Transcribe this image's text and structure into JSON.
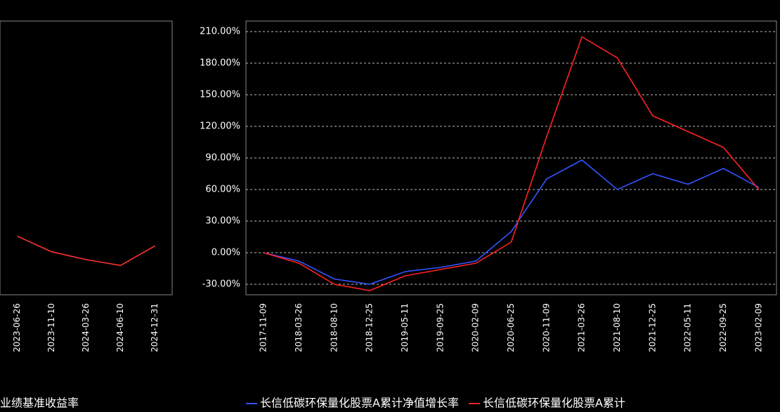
{
  "chart_data": [
    {
      "type": "line",
      "categories": [
        "2023-06-26",
        "2023-11-10",
        "2024-03-26",
        "2024-06-10",
        "2024-12-31"
      ],
      "series": [
        {
          "name": "业绩基准收益率",
          "color": "#ff3333",
          "values": [
            -10,
            -18,
            -22,
            -25,
            -15
          ]
        }
      ],
      "ylim": [
        -40,
        100
      ],
      "grid": true
    },
    {
      "type": "line",
      "categories": [
        "2017-11-09",
        "2018-03-26",
        "2018-08-10",
        "2018-12-25",
        "2019-05-11",
        "2019-09-25",
        "2020-02-09",
        "2020-06-25",
        "2020-11-09",
        "2021-03-26",
        "2021-08-10",
        "2021-12-25",
        "2022-05-11",
        "2022-09-25",
        "2023-02-09"
      ],
      "series": [
        {
          "name": "长信低碳环保量化股票A累计净值增长率",
          "color": "#3355ff",
          "values": [
            0,
            -8,
            -25,
            -30,
            -18,
            -14,
            -8,
            20,
            70,
            88,
            60,
            75,
            65,
            80,
            62
          ]
        },
        {
          "name": "长信低碳环保量化股票A累计",
          "color": "#ff2222",
          "values": [
            0,
            -10,
            -30,
            -36,
            -22,
            -16,
            -10,
            10,
            110,
            205,
            185,
            130,
            115,
            100,
            60
          ]
        }
      ],
      "ylim": [
        -40,
        220
      ],
      "yticks": [
        {
          "value": -30,
          "label": "-30.00%"
        },
        {
          "value": 0,
          "label": "0.00%"
        },
        {
          "value": 30,
          "label": "30.00%"
        },
        {
          "value": 60,
          "label": "60.00%"
        },
        {
          "value": 90,
          "label": "90.00%"
        },
        {
          "value": 120,
          "label": "120.00%"
        },
        {
          "value": 150,
          "label": "150.00%"
        },
        {
          "value": 180,
          "label": "180.00%"
        },
        {
          "value": 210,
          "label": "210.00%"
        }
      ],
      "grid": true
    }
  ]
}
